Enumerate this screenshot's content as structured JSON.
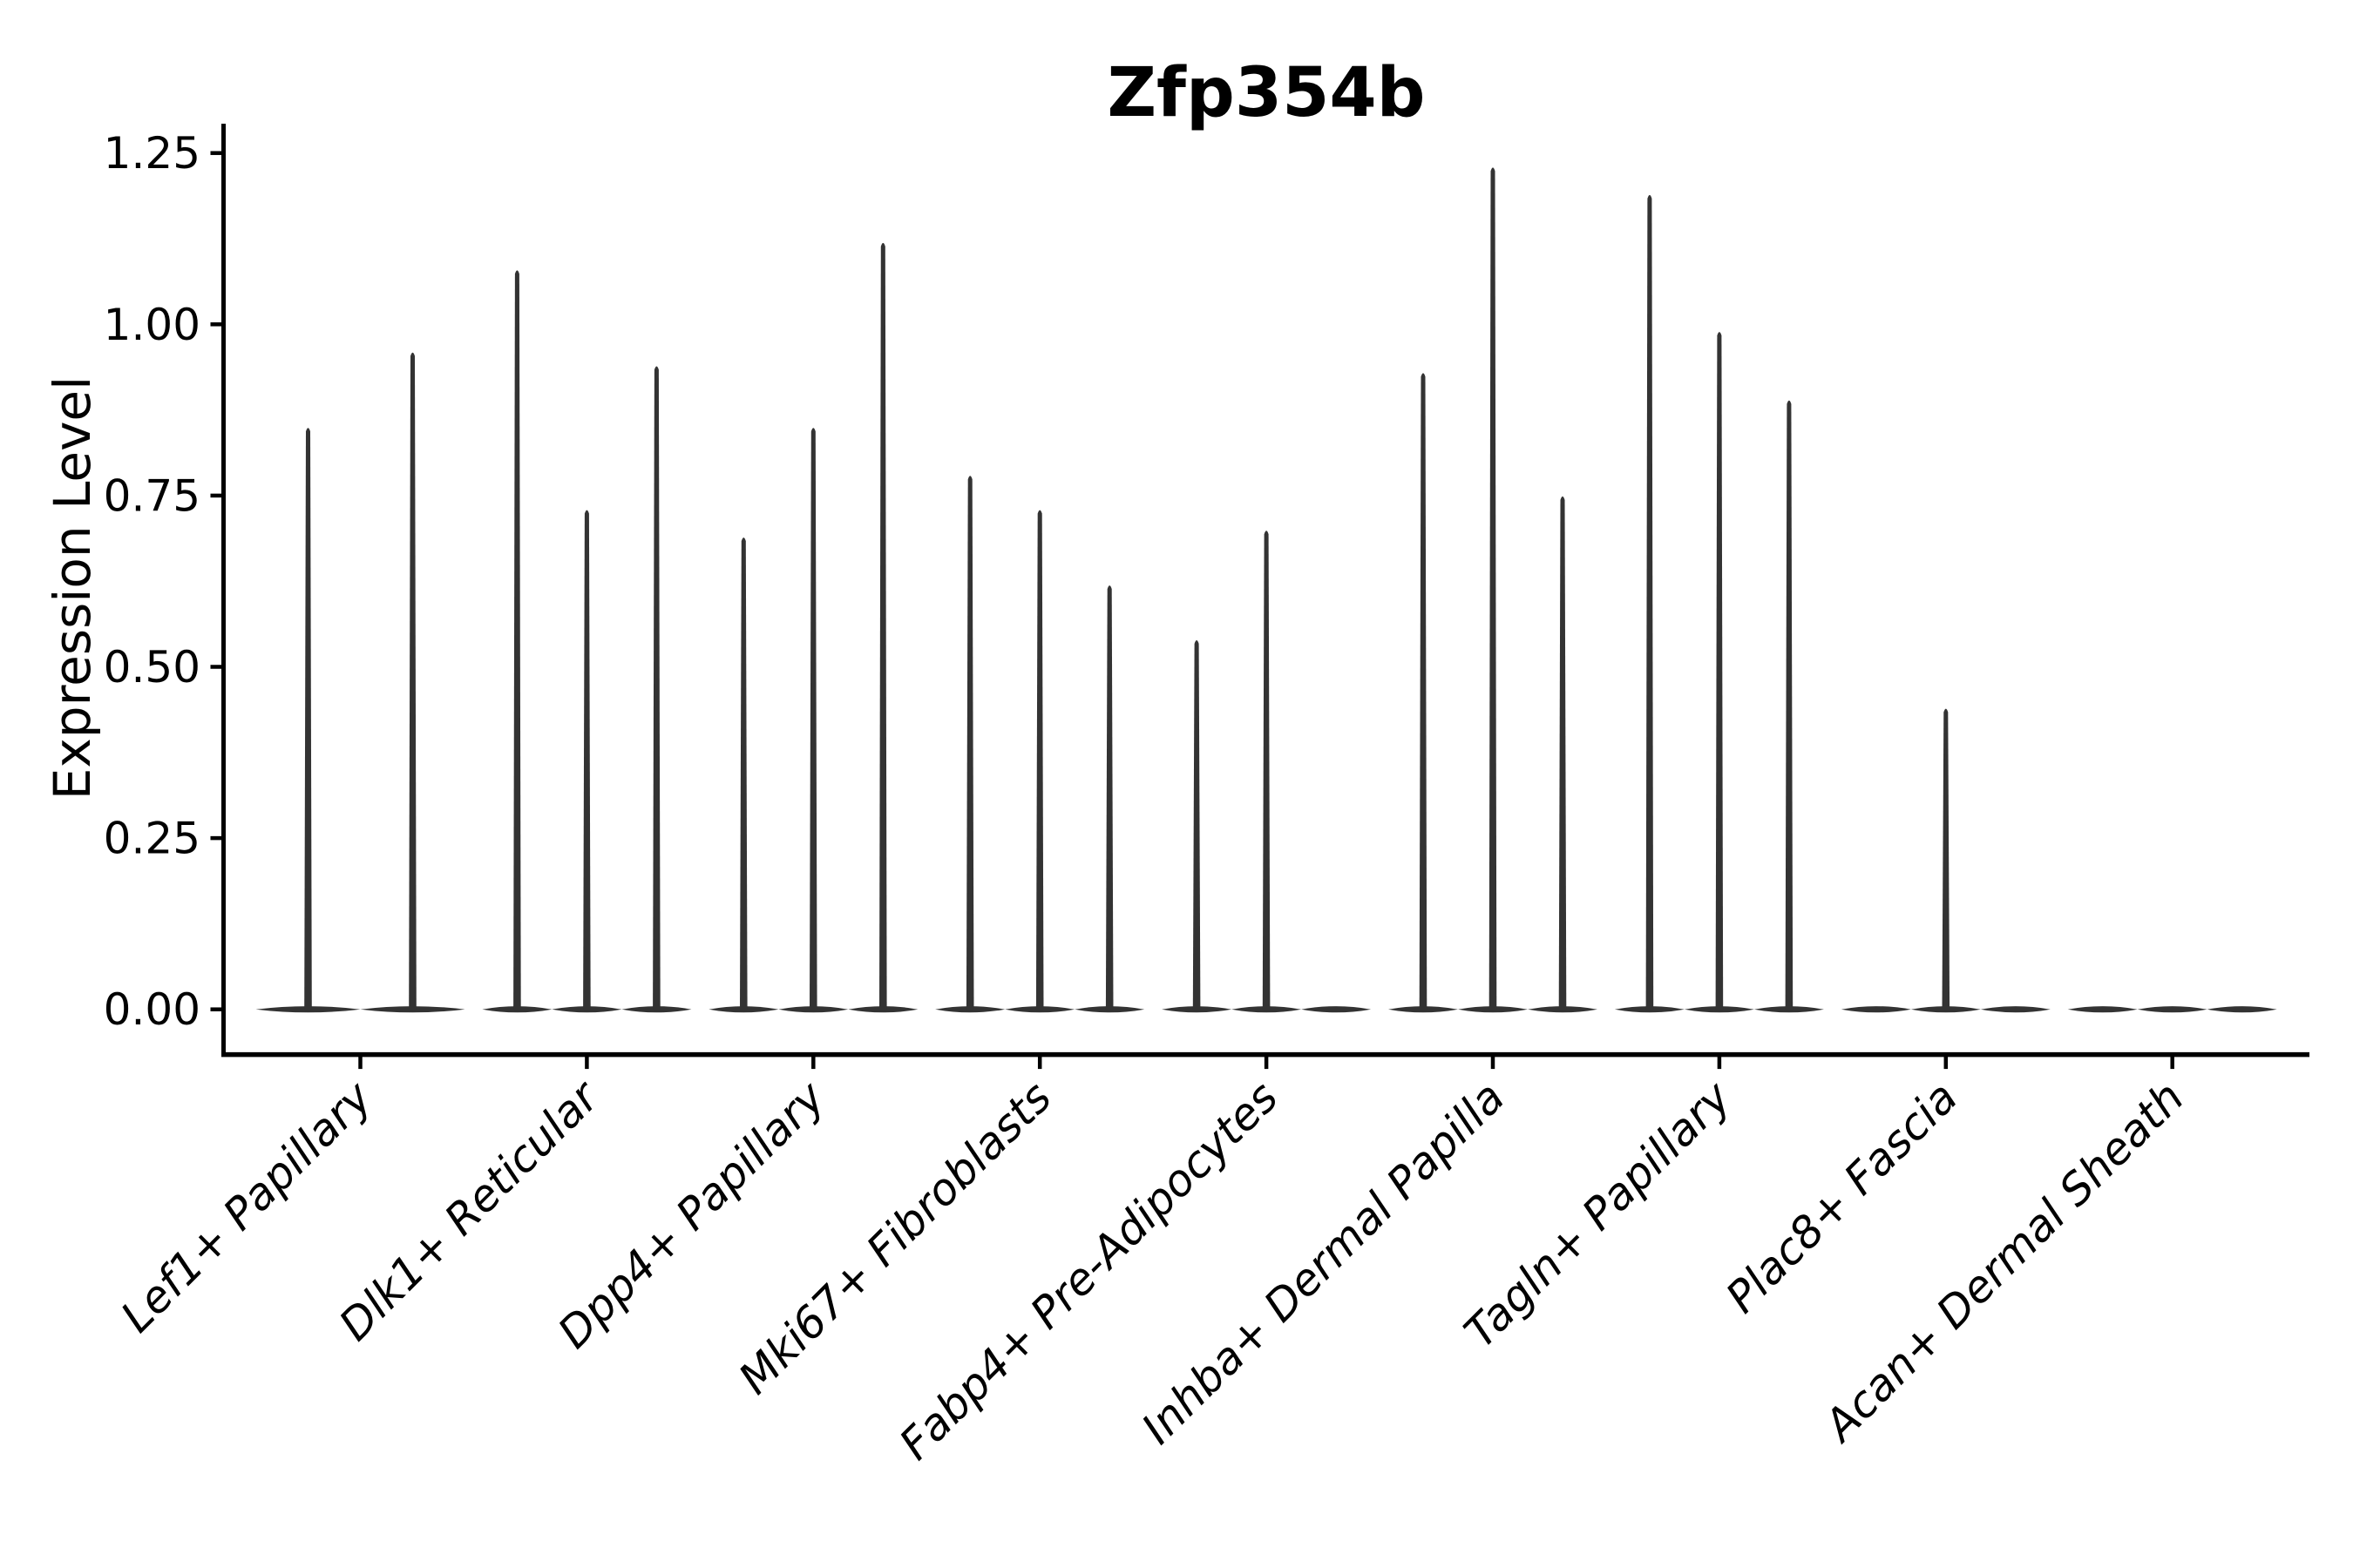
{
  "chart_data": {
    "type": "violin",
    "title": "Zfp354b",
    "xlabel": "",
    "ylabel": "Expression Level",
    "ytick_labels": [
      "0.00",
      "0.25",
      "0.50",
      "0.75",
      "1.00",
      "1.25"
    ],
    "ytick_values": [
      0.0,
      0.25,
      0.5,
      0.75,
      1.0,
      1.25
    ],
    "ylim": [
      -0.07,
      1.29
    ],
    "grid": false,
    "legend": "none",
    "categories": [
      "Lef1+ Papillary",
      "Dlk1+ Reticular",
      "Dpp4+ Papillary",
      "Mki67+ Fibroblasts",
      "Fabp4+ Pre-Adipocytes",
      "Inhba+ Dermal Papilla",
      "Tagln+ Papillary",
      "Plac8+ Fascia",
      "Acan+ Dermal Sheath"
    ],
    "groups": [
      {
        "label": "Lef1+ Papillary",
        "violin_max_values": [
          0.85,
          0.96
        ]
      },
      {
        "label": "Dlk1+ Reticular",
        "violin_max_values": [
          1.08,
          0.73,
          0.94
        ]
      },
      {
        "label": "Dpp4+ Papillary",
        "violin_max_values": [
          0.69,
          0.85,
          1.12
        ]
      },
      {
        "label": "Mki67+ Fibroblasts",
        "violin_max_values": [
          0.78,
          0.73,
          0.62
        ]
      },
      {
        "label": "Fabp4+ Pre-Adipocytes",
        "violin_max_values": [
          0.54,
          0.7,
          0.0
        ]
      },
      {
        "label": "Inhba+ Dermal Papilla",
        "violin_max_values": [
          0.93,
          1.23,
          0.75
        ]
      },
      {
        "label": "Tagln+ Papillary",
        "violin_max_values": [
          1.19,
          0.99,
          0.89
        ]
      },
      {
        "label": "Plac8+ Fascia",
        "violin_max_values": [
          0.0,
          0.44,
          0.0
        ]
      },
      {
        "label": "Acan+ Dermal Sheath",
        "violin_max_values": [
          0.0,
          0.0,
          0.0
        ]
      }
    ],
    "colors": {
      "violin": "#333333",
      "axis": "#000000",
      "text": "#000000",
      "background": "#ffffff"
    }
  }
}
